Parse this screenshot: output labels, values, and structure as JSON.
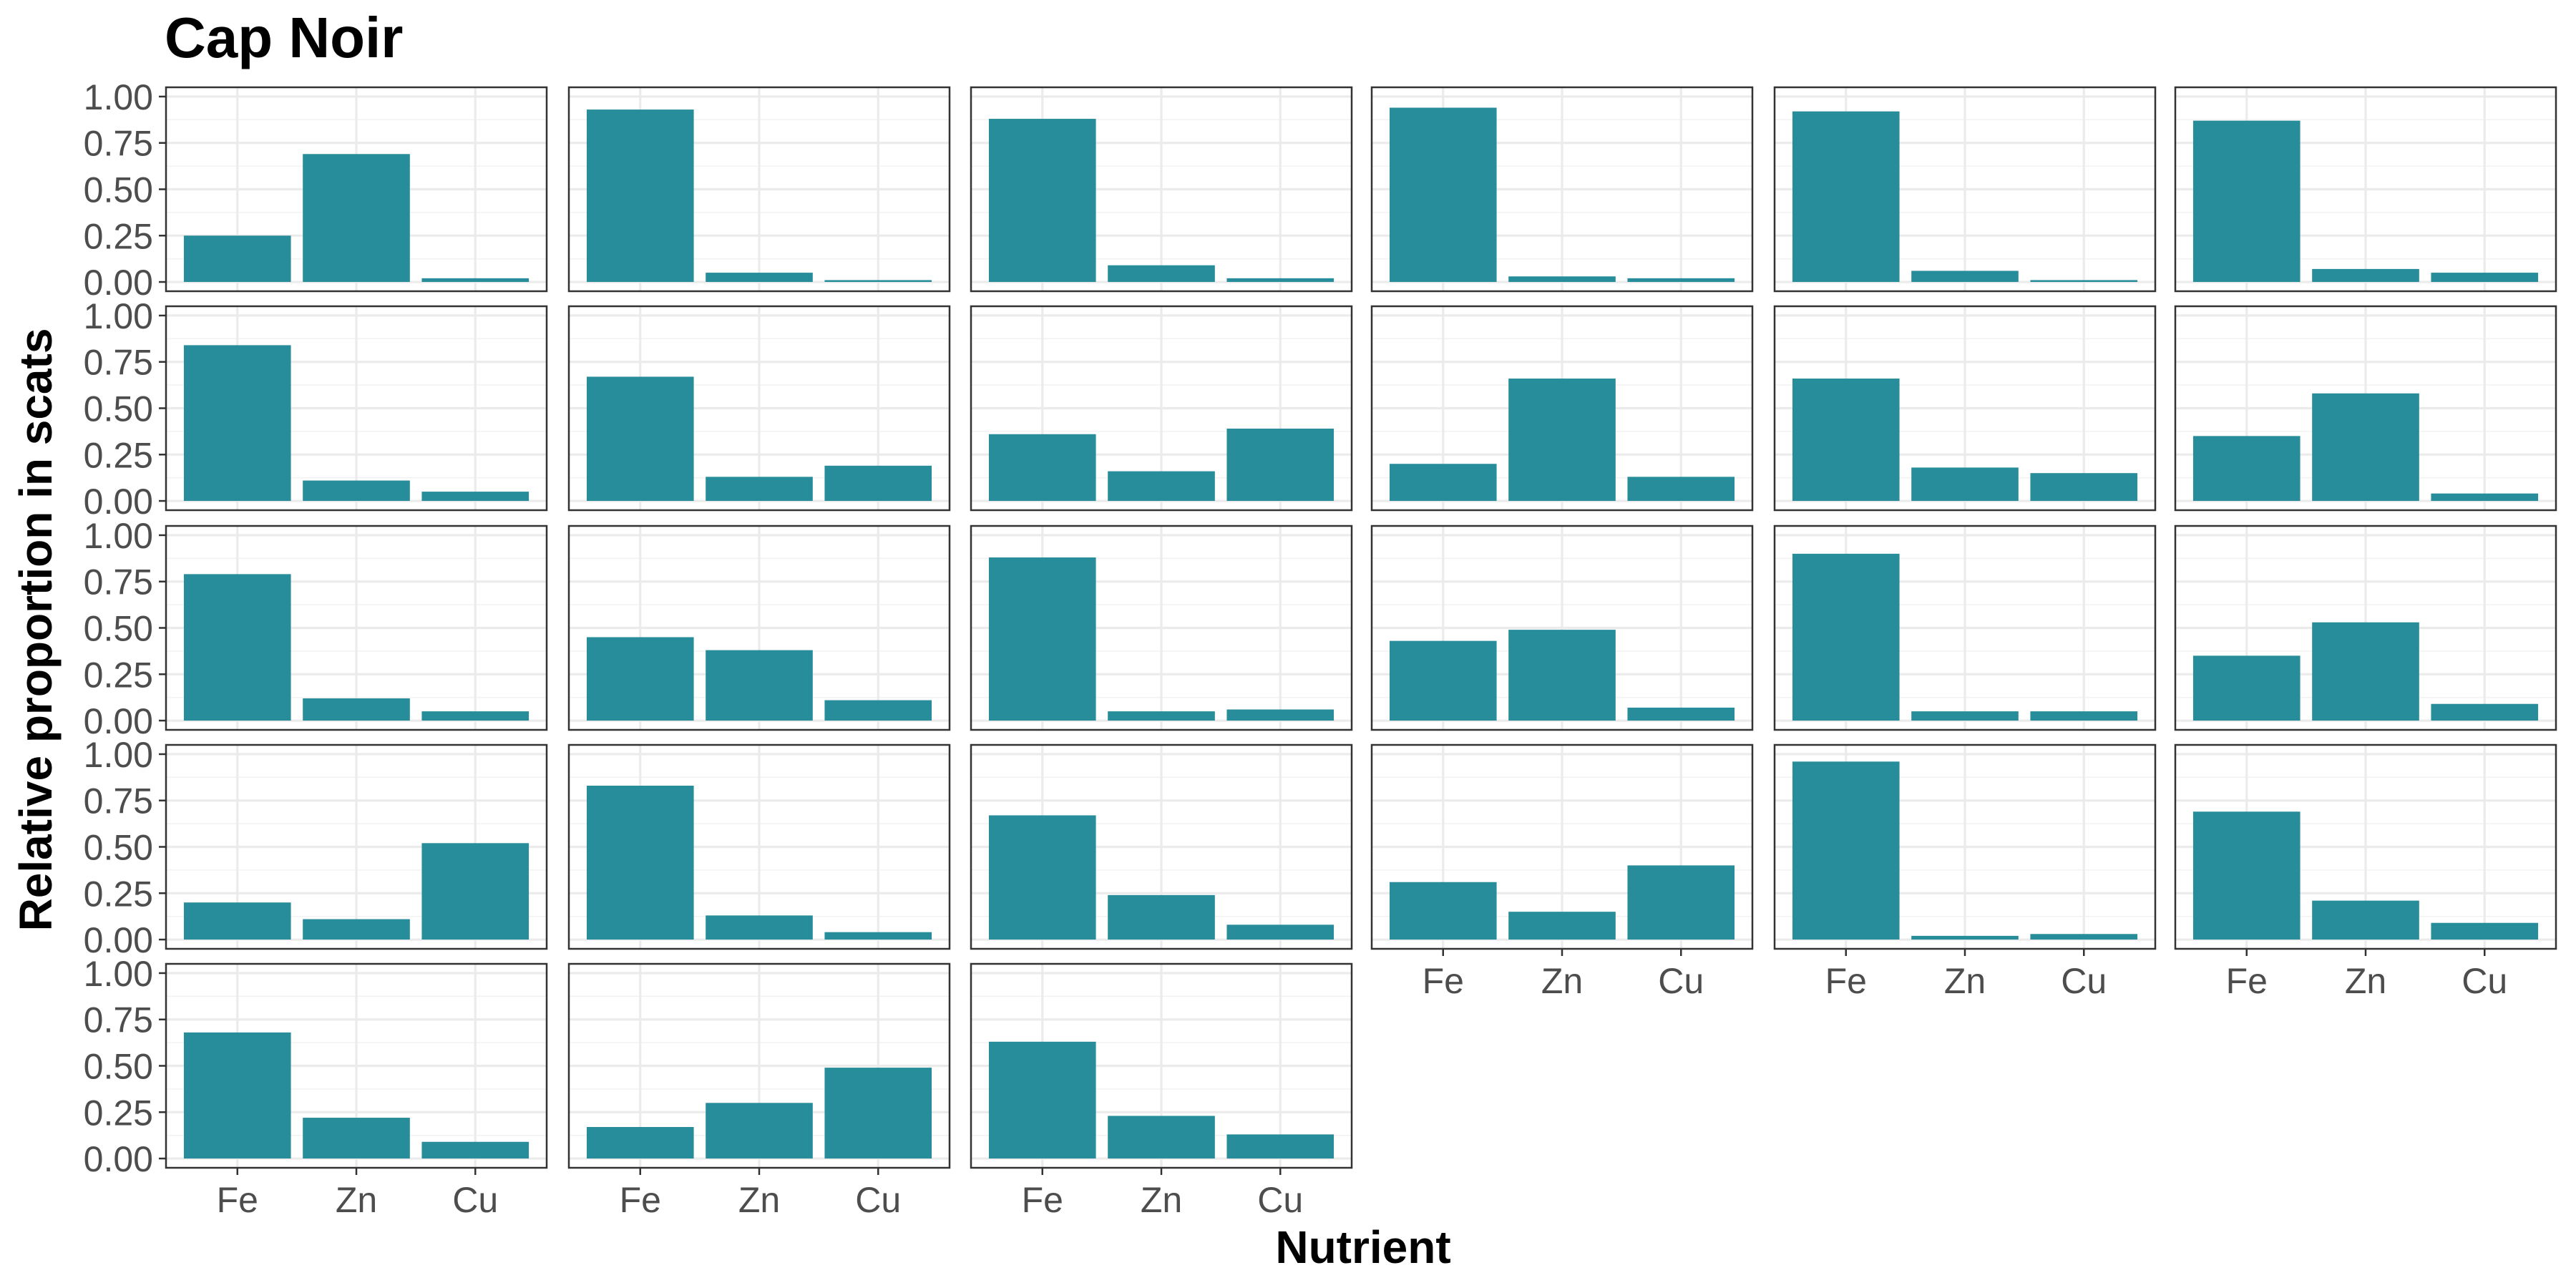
{
  "chart_data": {
    "type": "bar",
    "title": "Cap Noir",
    "xlabel": "Nutrient",
    "ylabel": "Relative proportion in scats",
    "categories": [
      "Fe",
      "Zn",
      "Cu"
    ],
    "yticks": [
      "0.00",
      "0.25",
      "0.50",
      "0.75",
      "1.00"
    ],
    "ylim": [
      0,
      1
    ],
    "grid": true,
    "bar_color": "#288d9a",
    "layout": {
      "columns": 6,
      "rows": 5
    },
    "panels": [
      {
        "values": [
          0.25,
          0.69,
          0.02
        ]
      },
      {
        "values": [
          0.93,
          0.05,
          0.01
        ]
      },
      {
        "values": [
          0.88,
          0.09,
          0.02
        ]
      },
      {
        "values": [
          0.94,
          0.03,
          0.02
        ]
      },
      {
        "values": [
          0.92,
          0.06,
          0.01
        ]
      },
      {
        "values": [
          0.87,
          0.07,
          0.05
        ]
      },
      {
        "values": [
          0.84,
          0.11,
          0.05
        ]
      },
      {
        "values": [
          0.67,
          0.13,
          0.19
        ]
      },
      {
        "values": [
          0.36,
          0.16,
          0.39
        ]
      },
      {
        "values": [
          0.2,
          0.66,
          0.13
        ]
      },
      {
        "values": [
          0.66,
          0.18,
          0.15
        ]
      },
      {
        "values": [
          0.35,
          0.58,
          0.04
        ]
      },
      {
        "values": [
          0.79,
          0.12,
          0.05
        ]
      },
      {
        "values": [
          0.45,
          0.38,
          0.11
        ]
      },
      {
        "values": [
          0.88,
          0.05,
          0.06
        ]
      },
      {
        "values": [
          0.43,
          0.49,
          0.07
        ]
      },
      {
        "values": [
          0.9,
          0.05,
          0.05
        ]
      },
      {
        "values": [
          0.35,
          0.53,
          0.09
        ]
      },
      {
        "values": [
          0.2,
          0.11,
          0.52
        ]
      },
      {
        "values": [
          0.83,
          0.13,
          0.04
        ]
      },
      {
        "values": [
          0.67,
          0.24,
          0.08
        ]
      },
      {
        "values": [
          0.31,
          0.15,
          0.4
        ]
      },
      {
        "values": [
          0.96,
          0.02,
          0.03
        ]
      },
      {
        "values": [
          0.69,
          0.21,
          0.09
        ]
      },
      {
        "values": [
          0.68,
          0.22,
          0.09
        ]
      },
      {
        "values": [
          0.17,
          0.3,
          0.49
        ]
      },
      {
        "values": [
          0.63,
          0.23,
          0.13
        ]
      }
    ]
  }
}
